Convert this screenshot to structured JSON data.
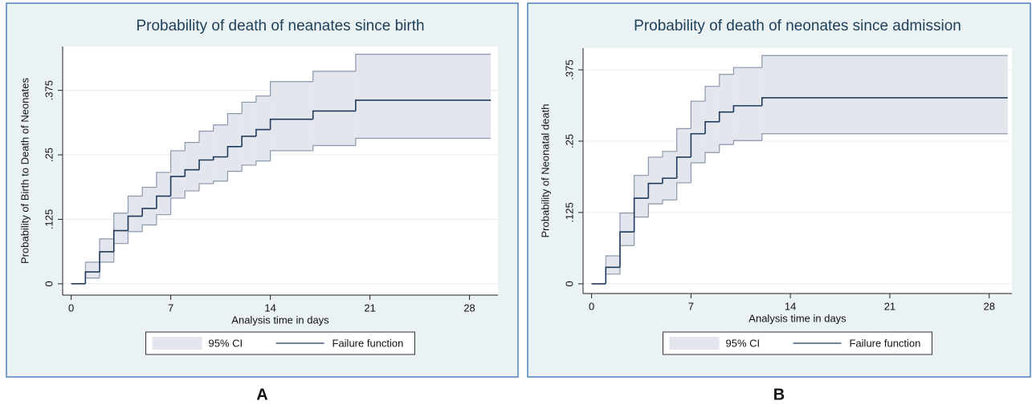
{
  "chart_data": [
    {
      "type": "step",
      "title": "Probability of death of neanates since birth",
      "panel_label": "A",
      "x_label": "Analysis time in days",
      "y_label": "Probability of Birth to Death of Neonates",
      "x": [
        0,
        1,
        2,
        3,
        4,
        5,
        6,
        7,
        8,
        9,
        10,
        11,
        12,
        13,
        14,
        17,
        20,
        29.5
      ],
      "series": [
        {
          "name": "95% CI",
          "color": "#e4e6ee",
          "edge_color": "#8a98ac",
          "type": "band",
          "lower": [
            null,
            0.011,
            0.042,
            0.078,
            0.101,
            0.114,
            0.134,
            0.166,
            0.18,
            0.194,
            0.199,
            0.218,
            0.23,
            0.238,
            0.258,
            0.268,
            0.282,
            0.282
          ],
          "upper": [
            null,
            0.042,
            0.087,
            0.137,
            0.17,
            0.187,
            0.216,
            0.258,
            0.274,
            0.296,
            0.308,
            0.33,
            0.352,
            0.364,
            0.392,
            0.412,
            0.445,
            0.445
          ]
        },
        {
          "name": "Failure function",
          "color": "#1f3b5c",
          "type": "line",
          "values": [
            0,
            0.023,
            0.062,
            0.103,
            0.131,
            0.146,
            0.17,
            0.208,
            0.221,
            0.24,
            0.246,
            0.266,
            0.286,
            0.299,
            0.319,
            0.335,
            0.356,
            0.356
          ]
        }
      ],
      "xlim": [
        -0.6,
        30
      ],
      "ylim": [
        -0.022,
        0.46
      ],
      "xticks": [
        0,
        7,
        14,
        21,
        28
      ],
      "yticks": [
        0,
        {
          "value": 0.125,
          "label": ".125"
        },
        {
          "value": 0.25,
          "label": ".25"
        },
        {
          "value": 0.375,
          "label": ".375"
        }
      ],
      "grid": true,
      "legend": "bottom"
    },
    {
      "type": "step",
      "title": "Probability of death of neonates since admission",
      "panel_label": "B",
      "x_label": "Analysis time in days",
      "y_label": "Probability of Neonatal death",
      "x": [
        0,
        1,
        2,
        3,
        4,
        5,
        6,
        7,
        8,
        9,
        10,
        12,
        29.3
      ],
      "series": [
        {
          "name": "95% CI",
          "color": "#e4e6ee",
          "edge_color": "#8a98ac",
          "type": "band",
          "lower": [
            null,
            0.017,
            0.067,
            0.117,
            0.14,
            0.147,
            0.177,
            0.212,
            0.23,
            0.244,
            0.251,
            0.263,
            0.263
          ],
          "upper": [
            null,
            0.049,
            0.124,
            0.19,
            0.222,
            0.232,
            0.272,
            0.32,
            0.346,
            0.367,
            0.379,
            0.4,
            0.4
          ]
        },
        {
          "name": "Failure function",
          "color": "#1f3b5c",
          "type": "line",
          "values": [
            0,
            0.029,
            0.091,
            0.15,
            0.176,
            0.185,
            0.222,
            0.263,
            0.284,
            0.301,
            0.312,
            0.326,
            0.326
          ]
        }
      ],
      "xlim": [
        -0.6,
        29.6
      ],
      "ylim": [
        -0.017,
        0.413
      ],
      "xticks": [
        0,
        7,
        14,
        21,
        28
      ],
      "yticks": [
        0,
        {
          "value": 0.125,
          "label": ".125"
        },
        {
          "value": 0.25,
          "label": ".25"
        },
        {
          "value": 0.375,
          "label": ".375"
        }
      ],
      "grid": true,
      "legend": "bottom"
    }
  ]
}
